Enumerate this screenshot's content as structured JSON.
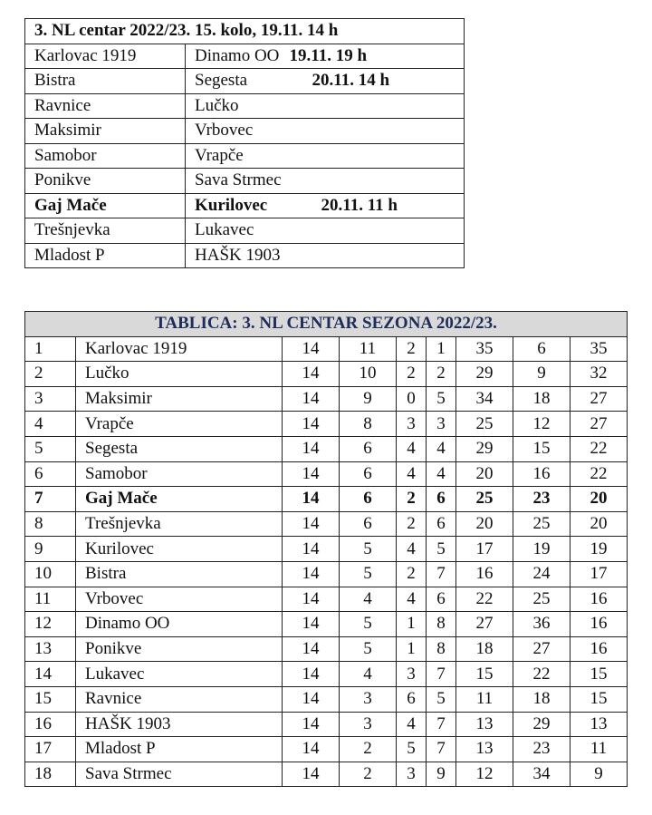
{
  "fixtures": {
    "title": "3. NL centar  2022/23. 15. kolo, 19.11. 14 h",
    "matches": [
      {
        "home": "Karlovac 1919",
        "away": "Dinamo OO",
        "time": "19.11. 19 h",
        "bold": false
      },
      {
        "home": "Bistra",
        "away": "Segesta",
        "time": "20.11. 14 h",
        "bold": false
      },
      {
        "home": "Ravnice",
        "away": "Lučko",
        "time": "",
        "bold": false
      },
      {
        "home": "Maksimir",
        "away": "Vrbovec",
        "time": "",
        "bold": false
      },
      {
        "home": "Samobor",
        "away": "Vrapče",
        "time": "",
        "bold": false
      },
      {
        "home": "Ponikve",
        "away": "Sava Strmec",
        "time": "",
        "bold": false
      },
      {
        "home": "Gaj Mače",
        "away": "Kurilovec",
        "time": "20.11. 11 h",
        "bold": true
      },
      {
        "home": "Trešnjevka",
        "away": "Lukavec",
        "time": "",
        "bold": false
      },
      {
        "home": "Mladost P",
        "away": "HAŠK 1903",
        "time": "",
        "bold": false
      }
    ]
  },
  "standings": {
    "title": "TABLICA: 3. NL CENTAR SEZONA 2022/23.",
    "title_color": "#1f2d5a",
    "rows": [
      [
        "1",
        "Karlovac 1919",
        "14",
        "11",
        "2",
        "1",
        "35",
        "6",
        "35"
      ],
      [
        "2",
        "Lučko",
        "14",
        "10",
        "2",
        "2",
        "29",
        "9",
        "32"
      ],
      [
        "3",
        "Maksimir",
        "14",
        "9",
        "0",
        "5",
        "34",
        "18",
        "27"
      ],
      [
        "4",
        "Vrapče",
        "14",
        "8",
        "3",
        "3",
        "25",
        "12",
        "27"
      ],
      [
        "5",
        "Segesta",
        "14",
        "6",
        "4",
        "4",
        "29",
        "15",
        "22"
      ],
      [
        "6",
        "Samobor",
        "14",
        "6",
        "4",
        "4",
        "20",
        "16",
        "22"
      ],
      [
        "7",
        "Gaj Mače",
        "14",
        "6",
        "2",
        "6",
        "25",
        "23",
        "20"
      ],
      [
        "8",
        "Trešnjevka",
        "14",
        "6",
        "2",
        "6",
        "20",
        "25",
        "20"
      ],
      [
        "9",
        "Kurilovec",
        "14",
        "5",
        "4",
        "5",
        "17",
        "19",
        "19"
      ],
      [
        "10",
        "Bistra",
        "14",
        "5",
        "2",
        "7",
        "16",
        "24",
        "17"
      ],
      [
        "11",
        "Vrbovec",
        "14",
        "4",
        "4",
        "6",
        "22",
        "25",
        "16"
      ],
      [
        "12",
        "Dinamo OO",
        "14",
        "5",
        "1",
        "8",
        "27",
        "36",
        "16"
      ],
      [
        "13",
        "Ponikve",
        "14",
        "5",
        "1",
        "8",
        "18",
        "27",
        "16"
      ],
      [
        "14",
        "Lukavec",
        "14",
        "4",
        "3",
        "7",
        "15",
        "22",
        "15"
      ],
      [
        "15",
        "Ravnice",
        "14",
        "3",
        "6",
        "5",
        "11",
        "18",
        "15"
      ],
      [
        "16",
        "HAŠK 1903",
        "14",
        "3",
        "4",
        "7",
        "13",
        "29",
        "13"
      ],
      [
        "17",
        "Mladost P",
        "14",
        "2",
        "5",
        "7",
        "13",
        "23",
        "11"
      ],
      [
        "18",
        "Sava Strmec",
        "14",
        "2",
        "3",
        "9",
        "12",
        "34",
        "9"
      ]
    ],
    "bold_row": 6
  }
}
